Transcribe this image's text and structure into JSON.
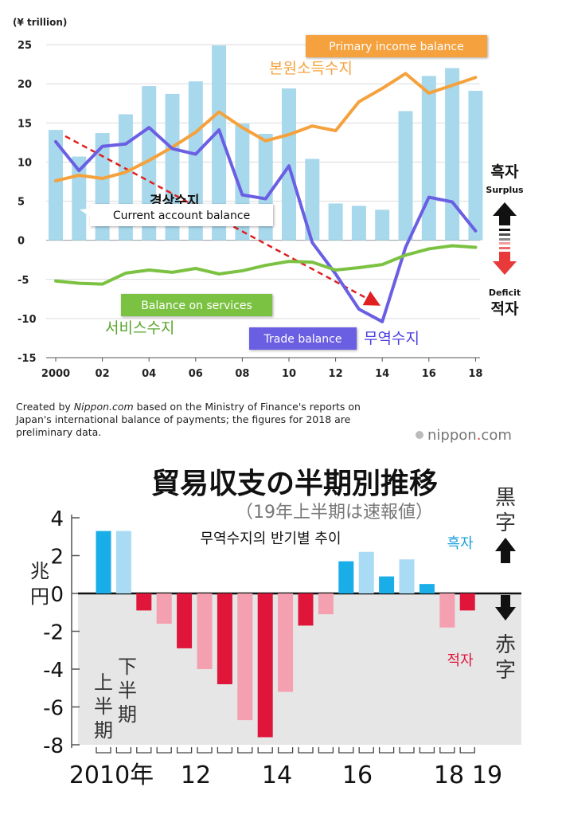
{
  "chart_data": [
    {
      "type": "line+bar",
      "unit_label": "(¥ trillion)",
      "ylim": [
        -15,
        25
      ],
      "yticks": [
        25,
        20,
        15,
        10,
        5,
        0,
        -5,
        -10,
        -15
      ],
      "xtick_labels": [
        "2000",
        "02",
        "04",
        "06",
        "08",
        "10",
        "12",
        "14",
        "16",
        "18"
      ],
      "years": [
        2000,
        2001,
        2002,
        2003,
        2004,
        2005,
        2006,
        2007,
        2008,
        2009,
        2010,
        2011,
        2012,
        2013,
        2014,
        2015,
        2016,
        2017,
        2018
      ],
      "series": [
        {
          "name": "Current account balance",
          "kind": "bar",
          "color": "#a8d8ec",
          "values": [
            14.1,
            10.7,
            13.7,
            16.1,
            19.7,
            18.7,
            20.3,
            24.9,
            14.9,
            13.6,
            19.4,
            10.4,
            4.7,
            4.4,
            3.9,
            16.5,
            21.0,
            22.0,
            19.1
          ]
        },
        {
          "name": "Primary income balance",
          "kind": "line",
          "color": "#f5a13c",
          "values": [
            7.6,
            8.3,
            7.9,
            8.7,
            10.2,
            11.9,
            13.8,
            16.4,
            14.4,
            12.7,
            13.5,
            14.6,
            14.0,
            17.7,
            19.4,
            21.3,
            18.8,
            19.8,
            20.8
          ]
        },
        {
          "name": "Trade balance",
          "kind": "line",
          "color": "#6a5fe3",
          "values": [
            12.6,
            8.9,
            12.0,
            12.3,
            14.4,
            11.7,
            11.0,
            14.1,
            5.8,
            5.3,
            9.5,
            -0.3,
            -4.3,
            -8.8,
            -10.4,
            -0.9,
            5.5,
            4.9,
            1.2
          ]
        },
        {
          "name": "Balance on services",
          "kind": "line",
          "color": "#7cc242",
          "values": [
            -5.2,
            -5.5,
            -5.6,
            -4.2,
            -3.8,
            -4.1,
            -3.6,
            -4.3,
            -3.9,
            -3.2,
            -2.7,
            -2.8,
            -3.8,
            -3.5,
            -3.1,
            -1.9,
            -1.1,
            -0.7,
            -0.9
          ]
        }
      ],
      "annotations": {
        "primary_income_en": "Primary income balance",
        "primary_income_ko": "본원소득수지",
        "current_account_en": "Current account balance",
        "current_account_ko": "경상수지",
        "services_en": "Balance on services",
        "services_ko": "서비스수지",
        "trade_en": "Trade balance",
        "trade_ko": "무역수지",
        "surplus_ko": "흑자",
        "surplus_en": "Surplus",
        "deficit_en": "Deficit",
        "deficit_ko": "적자"
      },
      "source_note_prefix": "Created by ",
      "source_note_site": "Nippon.com",
      "source_note_rest": " based on the Ministry of Finance's reports on Japan's international balance of payments; the figures for 2018 are preliminary data.",
      "brand_main": "nippon",
      "brand_dot": ".",
      "brand_tld": "com"
    },
    {
      "type": "bar",
      "title": "貿易収支の半期別推移",
      "subtitle": "（19年上半期は速報値）",
      "title_ko": "무역수지의 반기별 추이",
      "unit_label": "兆円",
      "ylim": [
        -8,
        4
      ],
      "yticks": [
        "4",
        "2",
        "0",
        "-2",
        "-4",
        "-6",
        "-8"
      ],
      "xtick_labels": [
        "2010年",
        "12",
        "14",
        "16",
        "18",
        "19"
      ],
      "first_half_label": "上半期",
      "second_half_label": "下半期",
      "surplus_ja": "黒字",
      "deficit_ja": "赤字",
      "surplus_ko": "흑자",
      "deficit_ko": "적자",
      "colors": {
        "surplus_h1": "#1aaee8",
        "surplus_h2": "#a9dcf4",
        "deficit_h1": "#e0153a",
        "deficit_h2": "#f4a0b0"
      },
      "periods": [
        "2010H1",
        "2010H2",
        "2011H1",
        "2011H2",
        "2012H1",
        "2012H2",
        "2013H1",
        "2013H2",
        "2014H1",
        "2014H2",
        "2015H1",
        "2015H2",
        "2016H1",
        "2016H2",
        "2017H1",
        "2017H2",
        "2018H1",
        "2018H2",
        "2019H1"
      ],
      "values": [
        3.3,
        3.3,
        -0.9,
        -1.6,
        -2.9,
        -4.0,
        -4.8,
        -6.7,
        -7.6,
        -5.2,
        -1.7,
        -1.1,
        1.7,
        2.2,
        0.9,
        1.8,
        0.5,
        -1.8,
        -0.9
      ]
    }
  ]
}
